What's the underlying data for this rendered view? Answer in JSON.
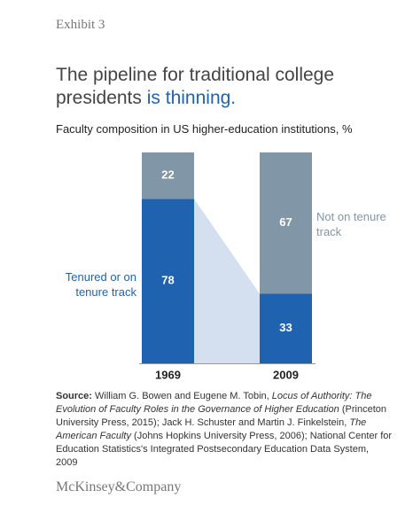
{
  "exhibit": "Exhibit 3",
  "chart_data": {
    "type": "stacked_bar",
    "title": "The pipeline for traditional college presidents",
    "title_highlight": "is thinning.",
    "subtitle": "Faculty composition in US higher-education institutions, %",
    "categories": [
      "1969",
      "2009"
    ],
    "series": [
      {
        "name": "Tenured or on tenure track",
        "color": "#1f63b0",
        "values": [
          78,
          33
        ]
      },
      {
        "name": "Not on tenure track",
        "color": "#8197a7",
        "values": [
          22,
          67
        ]
      }
    ],
    "connector_color": "#d4e0f0",
    "ylim": [
      0,
      100
    ]
  },
  "source": {
    "label": "Source:",
    "parts": [
      " William G. Bowen and Eugene M. Tobin, ",
      "Locus of Authority: The Evolution of Faculty Roles in the Governance of Higher Education",
      " (Princeton University Press, 2015); Jack H. Schuster and Martin J. Finkelstein, ",
      "The American Faculty",
      " (Johns Hopkins University Press, 2006); National Center for Education Statistics's Integrated Postsecondary Education Data System, 2009"
    ]
  },
  "footer": "McKinsey&Company"
}
